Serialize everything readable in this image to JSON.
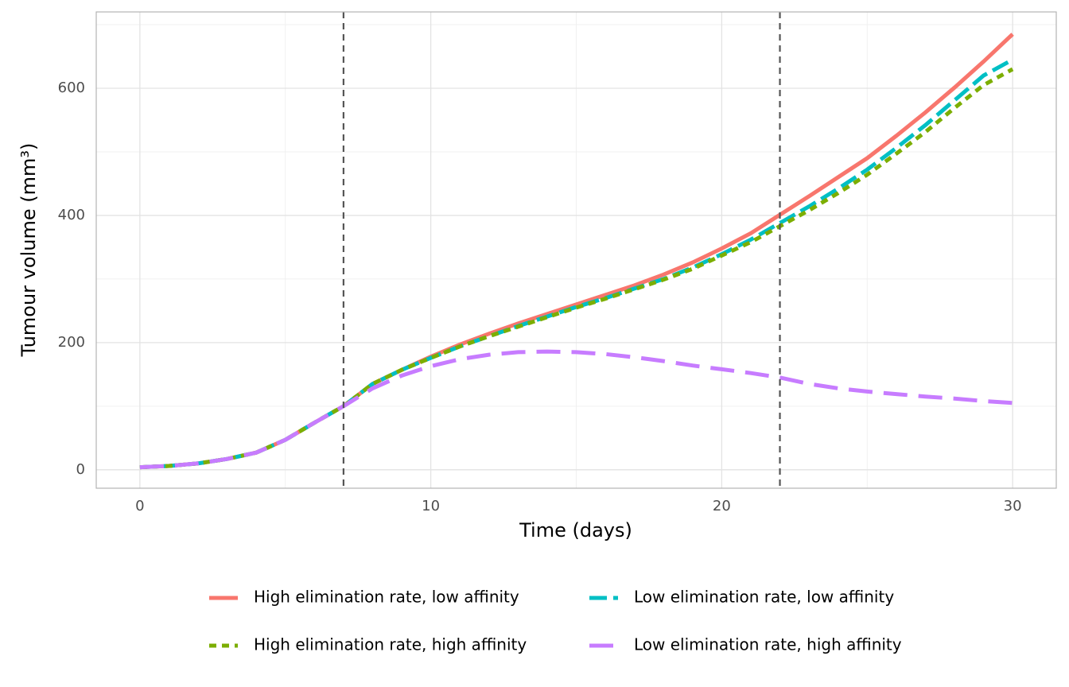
{
  "chart_data": {
    "type": "line",
    "xlabel": "Time (days)",
    "ylabel": "Tumour volume (mm³)",
    "x": [
      0,
      1,
      2,
      3,
      4,
      5,
      6,
      7,
      8,
      9,
      10,
      11,
      12,
      13,
      14,
      15,
      16,
      17,
      18,
      19,
      20,
      21,
      22,
      23,
      24,
      25,
      26,
      27,
      28,
      29,
      30
    ],
    "series": [
      {
        "name": "High elimination rate, low affinity",
        "color": "#f8766d",
        "linetype": "solid",
        "values": [
          4,
          6,
          10,
          17,
          27,
          47,
          74,
          100,
          135,
          157,
          178,
          197,
          214,
          230,
          245,
          260,
          275,
          290,
          307,
          326,
          348,
          372,
          401,
          430,
          460,
          490,
          525,
          562,
          601,
          642,
          685
        ]
      },
      {
        "name": "Low elimination rate, low affinity",
        "color": "#00bfc4",
        "linetype": "longdash",
        "values": [
          4,
          6,
          10,
          17,
          27,
          47,
          74,
          100,
          135,
          157,
          176,
          194,
          210,
          226,
          241,
          256,
          270,
          285,
          300,
          318,
          339,
          362,
          388,
          414,
          442,
          472,
          506,
          542,
          581,
          620,
          645
        ]
      },
      {
        "name": "High elimination rate, high affinity",
        "color": "#7cae00",
        "linetype": "dashed",
        "values": [
          4,
          6,
          10,
          17,
          27,
          47,
          74,
          100,
          135,
          157,
          176,
          194,
          210,
          225,
          240,
          255,
          269,
          284,
          299,
          316,
          337,
          358,
          383,
          408,
          435,
          464,
          497,
          531,
          569,
          605,
          630
        ]
      },
      {
        "name": "Low elimination rate, high affinity",
        "color": "#c77cff",
        "linetype": "twodash",
        "values": [
          4,
          6,
          10,
          17,
          27,
          47,
          74,
          100,
          128,
          148,
          163,
          174,
          181,
          185,
          186,
          185,
          182,
          177,
          171,
          164,
          158,
          152,
          145,
          135,
          128,
          123,
          119,
          115,
          112,
          108,
          105
        ]
      }
    ],
    "vlines": [
      7,
      22
    ],
    "xlim": [
      -1.5,
      31.5
    ],
    "xticks": [
      0,
      10,
      20,
      30
    ],
    "x_minor_grid": [
      5,
      15,
      25
    ],
    "ylim": [
      -29,
      720
    ],
    "yticks": [
      0,
      200,
      400,
      600
    ],
    "y_minor_grid": [
      100,
      300,
      500,
      700
    ],
    "grid": true,
    "legend": "bottom"
  }
}
